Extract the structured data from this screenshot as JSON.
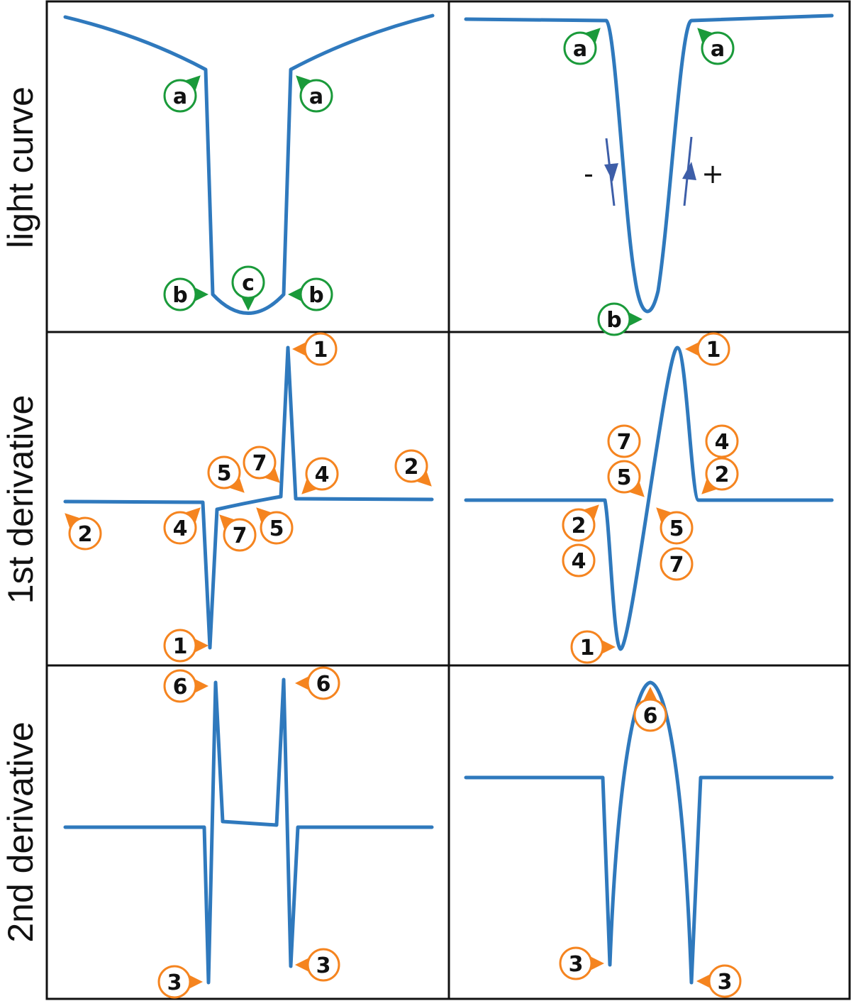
{
  "rows": [
    {
      "label": "light curve"
    },
    {
      "label": "1st derivative"
    },
    {
      "label": "2nd derivative"
    }
  ],
  "colors": {
    "curve": "#2f79bd",
    "green_marker": "#1a9a3a",
    "orange_marker": "#f5841f",
    "arrow": "#3d5ea8",
    "frame": "#111111"
  },
  "panels": {
    "light_left": {
      "markers": [
        {
          "text": "a",
          "color": "green"
        },
        {
          "text": "a",
          "color": "green"
        },
        {
          "text": "b",
          "color": "green"
        },
        {
          "text": "c",
          "color": "green"
        },
        {
          "text": "b",
          "color": "green"
        }
      ]
    },
    "light_right": {
      "markers": [
        {
          "text": "a",
          "color": "green"
        },
        {
          "text": "a",
          "color": "green"
        },
        {
          "text": "b",
          "color": "green"
        }
      ],
      "signs": {
        "minus": "-",
        "plus": "+"
      }
    },
    "d1_left": {
      "markers": [
        {
          "text": "1",
          "color": "orange"
        },
        {
          "text": "2",
          "color": "orange"
        },
        {
          "text": "2",
          "color": "orange"
        },
        {
          "text": "4",
          "color": "orange"
        },
        {
          "text": "5",
          "color": "orange"
        },
        {
          "text": "7",
          "color": "orange"
        },
        {
          "text": "4",
          "color": "orange"
        },
        {
          "text": "7",
          "color": "orange"
        },
        {
          "text": "5",
          "color": "orange"
        },
        {
          "text": "1",
          "color": "orange"
        }
      ]
    },
    "d1_right": {
      "markers": [
        {
          "text": "1",
          "color": "orange"
        },
        {
          "text": "7",
          "color": "orange"
        },
        {
          "text": "4",
          "color": "orange"
        },
        {
          "text": "5",
          "color": "orange"
        },
        {
          "text": "2",
          "color": "orange"
        },
        {
          "text": "2",
          "color": "orange"
        },
        {
          "text": "4",
          "color": "orange"
        },
        {
          "text": "5",
          "color": "orange"
        },
        {
          "text": "7",
          "color": "orange"
        },
        {
          "text": "1",
          "color": "orange"
        }
      ]
    },
    "d2_left": {
      "markers": [
        {
          "text": "6",
          "color": "orange"
        },
        {
          "text": "6",
          "color": "orange"
        },
        {
          "text": "3",
          "color": "orange"
        },
        {
          "text": "3",
          "color": "orange"
        }
      ]
    },
    "d2_right": {
      "markers": [
        {
          "text": "6",
          "color": "orange"
        },
        {
          "text": "3",
          "color": "orange"
        },
        {
          "text": "3",
          "color": "orange"
        }
      ]
    }
  }
}
